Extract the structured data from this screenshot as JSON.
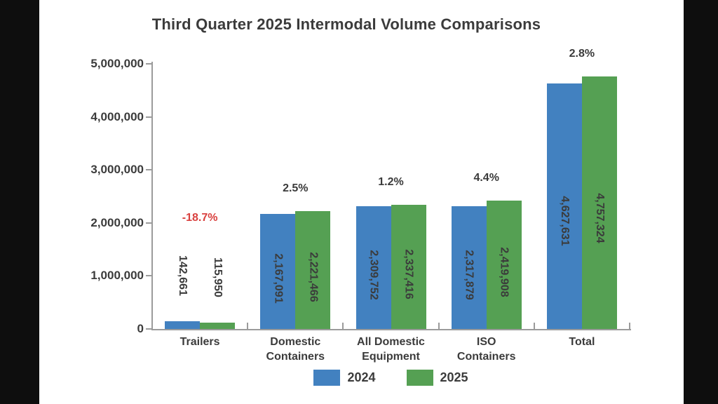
{
  "chart_data": {
    "type": "bar",
    "title": "Third Quarter 2025 Intermodal Volume Comparisons",
    "categories": [
      "Trailers",
      "Domestic\nContainers",
      "All Domestic\nEquipment",
      "ISO\nContainers",
      "Total"
    ],
    "series": [
      {
        "name": "2024",
        "color": "#4281c0",
        "values": [
          142661,
          2167091,
          2309752,
          2317879,
          4627631
        ]
      },
      {
        "name": "2025",
        "color": "#55a053",
        "values": [
          115950,
          2221466,
          2337416,
          2419908,
          4757324
        ]
      }
    ],
    "value_labels": [
      [
        "142,661",
        "2,167,091",
        "2,309,752",
        "2,317,879",
        "4,627,631"
      ],
      [
        "115,950",
        "2,221,466",
        "2,337,416",
        "2,419,908",
        "4,757,324"
      ]
    ],
    "pct_change": [
      "-18.7%",
      "2.5%",
      "1.2%",
      "4.4%",
      "2.8%"
    ],
    "y_tick_labels": [
      "0",
      "1,000,000",
      "2,000,000",
      "3,000,000",
      "4,000,000",
      "5,000,000"
    ],
    "y_tick_values": [
      0,
      1000000,
      2000000,
      3000000,
      4000000,
      5000000
    ],
    "ylim": [
      0,
      5000000
    ],
    "grid": false,
    "legend": {
      "position": "bottom",
      "entries": [
        "2024",
        "2025"
      ]
    },
    "colors": {
      "text": "#3b3b3b",
      "negative": "#d9413f",
      "axis": "#9b9b9b",
      "background": "#ffffff",
      "letterbox": "#0e0e0e",
      "bar_2024": "#4281c0",
      "bar_2025": "#55a053"
    }
  }
}
